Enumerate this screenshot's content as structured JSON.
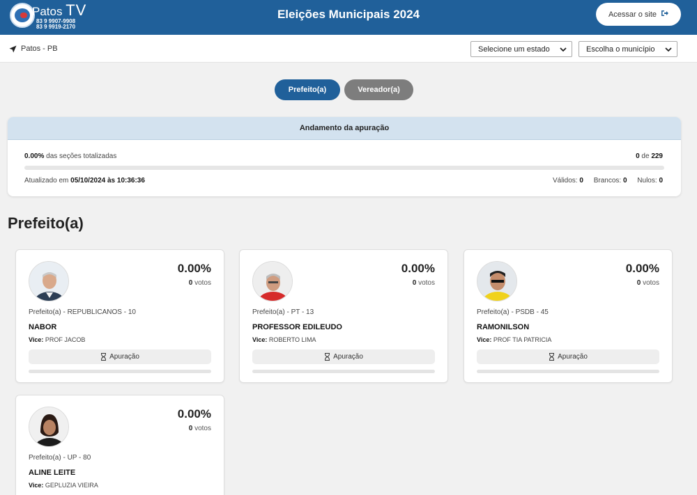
{
  "header": {
    "brand": "Patos",
    "brand_tv": "TV",
    "phone1": "83 9 9907-9908",
    "phone2": "83 9 9919-2170",
    "title": "Eleições Municipais 2024",
    "site_button": "Acessar o site",
    "site_button_icon": "exit-icon"
  },
  "location": {
    "label": "Patos - PB",
    "icon": "location-arrow-icon"
  },
  "filters": {
    "state_select": "Selecione um estado",
    "city_select": "Escolha o município"
  },
  "tabs": {
    "prefeito": "Prefeito(a)",
    "vereador": "Vereador(a)",
    "active": "prefeito"
  },
  "progress": {
    "title": "Andamento da apuração",
    "percent": "0.00%",
    "percent_text": "das seções totalizadas",
    "sections_done": "0",
    "of_text": "de",
    "sections_total": "229",
    "progress_fraction": 0,
    "updated_label": "Atualizado em",
    "updated_value": "05/10/2024 às 10:36:36",
    "validos_label": "Válidos:",
    "validos": "0",
    "brancos_label": "Brancos:",
    "brancos": "0",
    "nulos_label": "Nulos:",
    "nulos": "0"
  },
  "section_title": "Prefeito(a)",
  "labels": {
    "votes_word": "votos",
    "vice_label": "Vice:",
    "apuracao_button": "Apuração",
    "apuracao_icon": "hourglass-icon"
  },
  "candidates": [
    {
      "percent": "0.00%",
      "votes": "0",
      "party": "Prefeito(a) - REPUBLICANOS - 10",
      "name": "NABOR",
      "vice": "PROF JACOB",
      "progress_fraction": 0
    },
    {
      "percent": "0.00%",
      "votes": "0",
      "party": "Prefeito(a) - PT - 13",
      "name": "PROFESSOR EDILEUDO",
      "vice": "ROBERTO LIMA",
      "progress_fraction": 0
    },
    {
      "percent": "0.00%",
      "votes": "0",
      "party": "Prefeito(a) - PSDB - 45",
      "name": "RAMONILSON",
      "vice": "PROF TIA PATRICIA",
      "progress_fraction": 0
    },
    {
      "percent": "0.00%",
      "votes": "0",
      "party": "Prefeito(a) - UP - 80",
      "name": "ALINE LEITE",
      "vice": "GEPLUZIA VIEIRA",
      "progress_fraction": 0
    }
  ],
  "colors": {
    "primary": "#20609a",
    "tab_inactive": "#7d7d7d",
    "progress_header": "#d3e2ef"
  }
}
